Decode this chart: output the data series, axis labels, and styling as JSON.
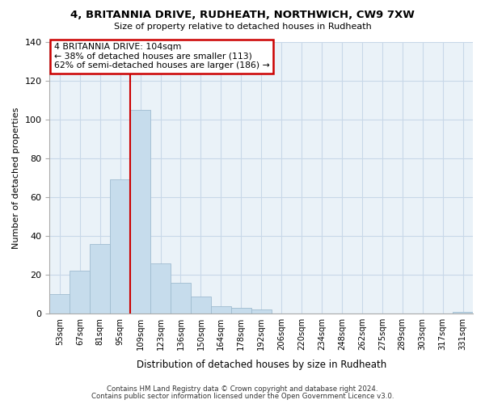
{
  "title": "4, BRITANNIA DRIVE, RUDHEATH, NORTHWICH, CW9 7XW",
  "subtitle": "Size of property relative to detached houses in Rudheath",
  "xlabel": "Distribution of detached houses by size in Rudheath",
  "ylabel": "Number of detached properties",
  "bar_heights": [
    10,
    22,
    36,
    69,
    105,
    26,
    16,
    9,
    4,
    3,
    2,
    0,
    0,
    0,
    0,
    0,
    0,
    0,
    0,
    0,
    1
  ],
  "x_labels": [
    "53sqm",
    "67sqm",
    "81sqm",
    "95sqm",
    "109sqm",
    "123sqm",
    "136sqm",
    "150sqm",
    "164sqm",
    "178sqm",
    "192sqm",
    "206sqm",
    "220sqm",
    "234sqm",
    "248sqm",
    "262sqm",
    "275sqm",
    "289sqm",
    "303sqm",
    "317sqm",
    "331sqm"
  ],
  "bar_color": "#c6dcec",
  "bar_edge_color": "#a0bcd0",
  "vline_x_index": 4,
  "vline_color": "#cc0000",
  "ylim": [
    0,
    140
  ],
  "annotation_line1": "4 BRITANNIA DRIVE: 104sqm",
  "annotation_line2": "← 38% of detached houses are smaller (113)",
  "annotation_line3": "62% of semi-detached houses are larger (186) →",
  "annotation_box_color": "#cc0000",
  "annotation_box_bg": "#ffffff",
  "footer_line1": "Contains HM Land Registry data © Crown copyright and database right 2024.",
  "footer_line2": "Contains public sector information licensed under the Open Government Licence v3.0.",
  "background_color": "#ffffff",
  "plot_bg_color": "#eaf2f8",
  "grid_color": "#c8d8e8",
  "yticks": [
    0,
    20,
    40,
    60,
    80,
    100,
    120,
    140
  ]
}
